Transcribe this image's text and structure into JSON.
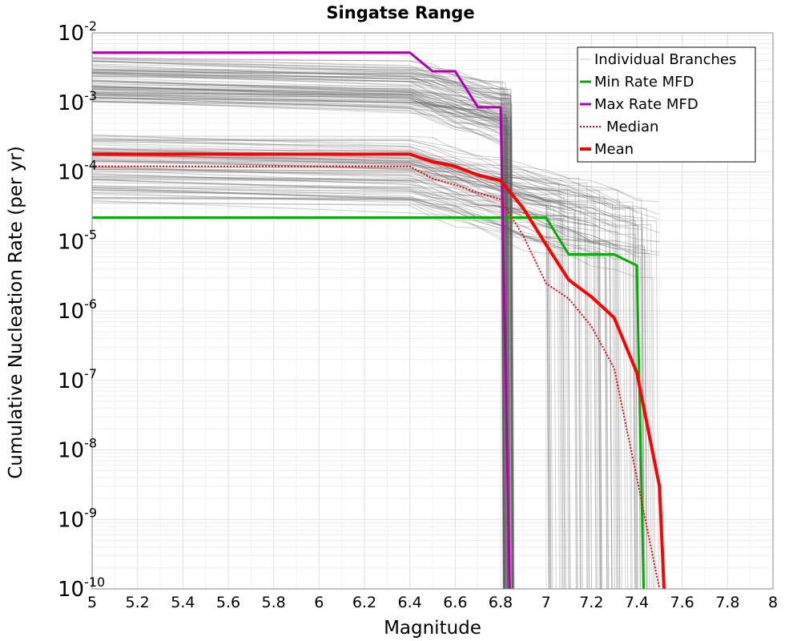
{
  "chart_data": {
    "type": "line",
    "title": "Singatse Range",
    "xlabel": "Magnitude",
    "ylabel": "Cumulative Nucleation Rate (per yr)",
    "xlim": [
      5,
      8
    ],
    "ylim": [
      1e-10,
      0.01
    ],
    "yscale": "log",
    "grid": true,
    "x_ticks": [
      5,
      5.2,
      5.4,
      5.6,
      5.8,
      6,
      6.2,
      6.4,
      6.6,
      6.8,
      7,
      7.2,
      7.4,
      7.6,
      7.8,
      8
    ],
    "x_tick_labels": [
      "5",
      "5.2",
      "5.4",
      "5.6",
      "5.8",
      "6",
      "6.2",
      "6.4",
      "6.6",
      "6.8",
      "7",
      "7.2",
      "7.4",
      "7.6",
      "7.8",
      "8"
    ],
    "y_tick_labels": [
      {
        "base": "10",
        "exp": "-2"
      },
      {
        "base": "10",
        "exp": "-3"
      },
      {
        "base": "10",
        "exp": "-4"
      },
      {
        "base": "10",
        "exp": "-5"
      },
      {
        "base": "10",
        "exp": "-6"
      },
      {
        "base": "10",
        "exp": "-7"
      },
      {
        "base": "10",
        "exp": "-8"
      },
      {
        "base": "10",
        "exp": "-9"
      },
      {
        "base": "10",
        "exp": "-10"
      }
    ],
    "legend": {
      "position": "top-right",
      "entries": [
        {
          "label": "Individual Branches",
          "color": "#c8c8c8",
          "style": "thin"
        },
        {
          "label": "Min Rate MFD",
          "color": "#00b000",
          "style": "solid"
        },
        {
          "label": "Max Rate MFD",
          "color": "#b000b0",
          "style": "solid"
        },
        {
          "label": "Median",
          "color": "#ff0000",
          "style": "dotted"
        },
        {
          "label": "Mean",
          "color": "#ff0000",
          "style": "thick"
        }
      ]
    },
    "series": [
      {
        "name": "Min Rate MFD",
        "color": "#00b000",
        "x": [
          5.0,
          6.4,
          6.5,
          6.6,
          6.7,
          6.8,
          6.9,
          7.0,
          7.1,
          7.2,
          7.3,
          7.4,
          7.43
        ],
        "y": [
          2.2e-05,
          2.2e-05,
          2.2e-05,
          2.2e-05,
          2.2e-05,
          2.2e-05,
          2.2e-05,
          2.2e-05,
          6.5e-06,
          6.5e-06,
          6.5e-06,
          4.5e-06,
          1e-10
        ]
      },
      {
        "name": "Max Rate MFD",
        "color": "#b000b0",
        "x": [
          5.0,
          6.4,
          6.5,
          6.6,
          6.7,
          6.8,
          6.84
        ],
        "y": [
          0.0052,
          0.0052,
          0.0028,
          0.0028,
          0.00085,
          0.00085,
          1e-10
        ]
      },
      {
        "name": "Median",
        "color": "#ff0000",
        "x": [
          5.0,
          6.4,
          6.5,
          6.6,
          6.7,
          6.8,
          6.9,
          7.0,
          7.1,
          7.2,
          7.3,
          7.4,
          7.5
        ],
        "y": [
          0.00012,
          0.00012,
          8e-05,
          6.5e-05,
          5e-05,
          4e-05,
          1.2e-05,
          2.5e-06,
          1.5e-06,
          6e-07,
          1.5e-07,
          4e-09,
          1e-10
        ]
      },
      {
        "name": "Mean",
        "color": "#ff0000",
        "x": [
          5.0,
          6.4,
          6.5,
          6.6,
          6.7,
          6.8,
          6.9,
          7.0,
          7.1,
          7.2,
          7.3,
          7.4,
          7.5,
          7.52
        ],
        "y": [
          0.00018,
          0.00018,
          0.00014,
          0.00012,
          9e-05,
          7.5e-05,
          3e-05,
          9e-06,
          2.8e-06,
          1.6e-06,
          8e-07,
          1.3e-07,
          3e-09,
          1e-10
        ]
      }
    ],
    "branch_bands": [
      {
        "plateau_min": 0.001,
        "plateau_max": 0.0045,
        "drop_from": 6.8,
        "drop_to": 6.85
      },
      {
        "plateau_min": 3.5e-05,
        "plateau_max": 0.00035,
        "drop_from": 7.0,
        "drop_to": 7.55
      }
    ]
  }
}
